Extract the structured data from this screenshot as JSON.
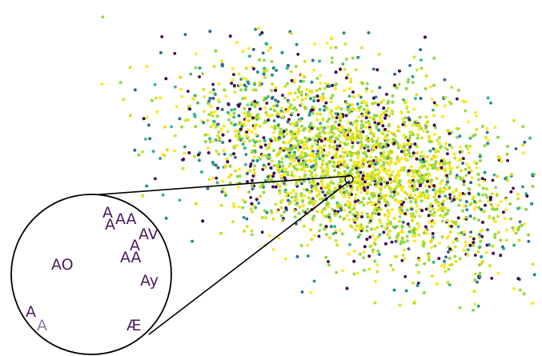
{
  "figure": {
    "kind": "scatter-with-magnifier",
    "colors": [
      "#440154",
      "#31688e",
      "#21908d",
      "#35b779",
      "#90d743",
      "#d4e21b",
      "#fde725"
    ],
    "magnifier_stroke": "#000000",
    "glyph_color": "#4a1a5e"
  },
  "magnifier": {
    "labels": [
      {
        "id": "a1",
        "text": "A"
      },
      {
        "id": "a2",
        "text": "AA"
      },
      {
        "id": "a3",
        "text": "A"
      },
      {
        "id": "a4",
        "text": "AV"
      },
      {
        "id": "a5",
        "text": "A"
      },
      {
        "id": "a6",
        "text": "AA"
      },
      {
        "id": "a7",
        "text": "AO"
      },
      {
        "id": "a8",
        "text": "Ay"
      },
      {
        "id": "a9",
        "text": "A"
      },
      {
        "id": "a10",
        "text": "A"
      },
      {
        "id": "a11",
        "text": "Æ"
      }
    ]
  }
}
